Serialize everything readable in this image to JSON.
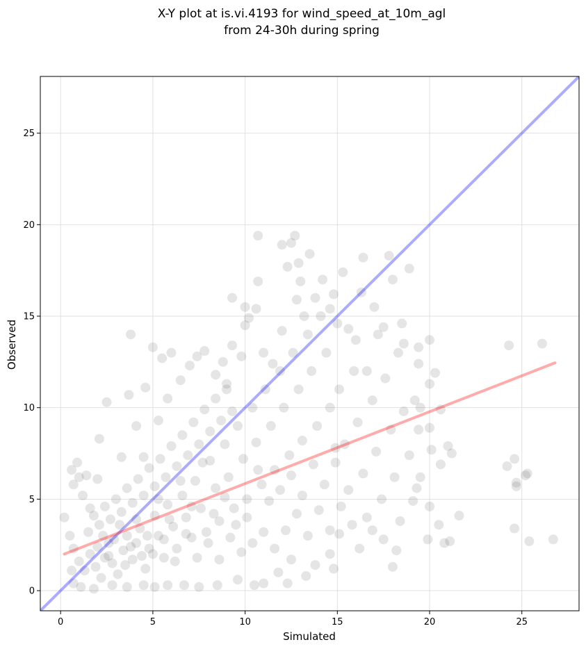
{
  "chart_data": {
    "type": "scatter",
    "title": "X-Y plot at is.vi.4193 for wind_speed_at_10m_agl",
    "subtitle": "from 24-30h during spring",
    "xlabel": "Simulated",
    "ylabel": "Observed",
    "xlim": [
      -1.1,
      28.1
    ],
    "ylim": [
      -1.1,
      28.1
    ],
    "xticks": [
      0,
      5,
      10,
      15,
      20,
      25
    ],
    "yticks": [
      0,
      5,
      10,
      15,
      20,
      25
    ],
    "grid": true,
    "point_color": "#333333",
    "points": [
      [
        0.2,
        4.0
      ],
      [
        0.5,
        3.0
      ],
      [
        0.6,
        6.6
      ],
      [
        0.7,
        5.8
      ],
      [
        0.9,
        7.0
      ],
      [
        1.0,
        6.2
      ],
      [
        1.2,
        5.2
      ],
      [
        1.4,
        6.3
      ],
      [
        1.6,
        4.5
      ],
      [
        2.0,
        6.1
      ],
      [
        2.1,
        8.3
      ],
      [
        2.5,
        10.3
      ],
      [
        3.3,
        7.3
      ],
      [
        3.7,
        10.7
      ],
      [
        3.8,
        14.0
      ],
      [
        4.1,
        9.0
      ],
      [
        4.5,
        7.3
      ],
      [
        4.6,
        11.1
      ],
      [
        5.0,
        13.3
      ],
      [
        5.3,
        9.3
      ],
      [
        5.5,
        12.7
      ],
      [
        5.8,
        10.5
      ],
      [
        6.0,
        13.0
      ],
      [
        6.5,
        11.5
      ],
      [
        7.0,
        12.3
      ],
      [
        7.4,
        12.8
      ],
      [
        7.8,
        13.1
      ],
      [
        8.4,
        11.8
      ],
      [
        8.8,
        12.5
      ],
      [
        9.0,
        11.3
      ],
      [
        9.3,
        13.4
      ],
      [
        9.3,
        16.0
      ],
      [
        9.8,
        12.8
      ],
      [
        10.0,
        14.5
      ],
      [
        10.0,
        15.5
      ],
      [
        10.2,
        14.9
      ],
      [
        10.6,
        15.4
      ],
      [
        10.7,
        16.9
      ],
      [
        10.7,
        19.4
      ],
      [
        11.0,
        13.0
      ],
      [
        11.5,
        12.4
      ],
      [
        12.0,
        14.2
      ],
      [
        12.0,
        18.9
      ],
      [
        12.3,
        17.7
      ],
      [
        12.5,
        19.0
      ],
      [
        12.7,
        19.4
      ],
      [
        12.8,
        15.9
      ],
      [
        12.9,
        17.9
      ],
      [
        13.0,
        16.9
      ],
      [
        13.2,
        15.0
      ],
      [
        13.5,
        18.4
      ],
      [
        13.8,
        16.0
      ],
      [
        14.2,
        17.0
      ],
      [
        14.6,
        15.4
      ],
      [
        14.8,
        16.2
      ],
      [
        15.0,
        14.6
      ],
      [
        15.3,
        17.4
      ],
      [
        15.6,
        14.3
      ],
      [
        16.0,
        13.7
      ],
      [
        16.3,
        16.3
      ],
      [
        16.4,
        18.2
      ],
      [
        16.6,
        12.0
      ],
      [
        17.0,
        15.5
      ],
      [
        17.2,
        14.0
      ],
      [
        17.5,
        14.4
      ],
      [
        17.8,
        18.3
      ],
      [
        18.0,
        17.0
      ],
      [
        18.3,
        13.0
      ],
      [
        18.5,
        14.6
      ],
      [
        18.6,
        13.5
      ],
      [
        18.9,
        17.6
      ],
      [
        19.4,
        13.3
      ],
      [
        19.4,
        12.4
      ],
      [
        20.0,
        13.7
      ],
      [
        20.3,
        11.9
      ],
      [
        20.0,
        11.3
      ],
      [
        19.2,
        10.4
      ],
      [
        19.5,
        10.0
      ],
      [
        20.6,
        9.9
      ],
      [
        20.0,
        8.9
      ],
      [
        20.1,
        7.7
      ],
      [
        21.0,
        7.9
      ],
      [
        20.6,
        6.9
      ],
      [
        21.2,
        7.5
      ],
      [
        19.5,
        6.2
      ],
      [
        19.3,
        5.6
      ],
      [
        20.0,
        4.6
      ],
      [
        20.5,
        3.6
      ],
      [
        19.9,
        2.8
      ],
      [
        20.8,
        2.6
      ],
      [
        21.1,
        2.7
      ],
      [
        21.6,
        4.1
      ],
      [
        24.3,
        13.4
      ],
      [
        26.1,
        13.5
      ],
      [
        24.2,
        6.8
      ],
      [
        24.6,
        7.2
      ],
      [
        24.7,
        5.9
      ],
      [
        24.7,
        5.7
      ],
      [
        25.2,
        6.3
      ],
      [
        25.3,
        6.4
      ],
      [
        24.6,
        3.4
      ],
      [
        25.4,
        2.7
      ],
      [
        26.7,
        2.8
      ],
      [
        18.0,
        1.3
      ],
      [
        18.2,
        2.2
      ],
      [
        17.5,
        2.8
      ],
      [
        16.9,
        3.3
      ],
      [
        16.2,
        2.3
      ],
      [
        15.8,
        3.6
      ],
      [
        15.1,
        3.1
      ],
      [
        14.6,
        2.0
      ],
      [
        14.8,
        1.2
      ],
      [
        13.8,
        1.4
      ],
      [
        13.3,
        0.8
      ],
      [
        12.5,
        1.7
      ],
      [
        11.8,
        1.0
      ],
      [
        12.3,
        0.4
      ],
      [
        11.0,
        0.4
      ],
      [
        10.5,
        0.3
      ],
      [
        9.6,
        0.6
      ],
      [
        8.5,
        0.3
      ],
      [
        7.5,
        0.2
      ],
      [
        6.7,
        0.3
      ],
      [
        5.8,
        0.3
      ],
      [
        5.1,
        0.2
      ],
      [
        4.5,
        0.3
      ],
      [
        3.6,
        0.2
      ],
      [
        2.8,
        0.3
      ],
      [
        1.8,
        0.1
      ],
      [
        1.1,
        0.2
      ],
      [
        0.7,
        0.4
      ],
      [
        0.6,
        1.1
      ],
      [
        0.7,
        2.3
      ],
      [
        1.0,
        1.6
      ],
      [
        1.3,
        1.1
      ],
      [
        1.6,
        2.0
      ],
      [
        1.9,
        1.3
      ],
      [
        2.2,
        0.7
      ],
      [
        2.4,
        1.8
      ],
      [
        2.6,
        2.6
      ],
      [
        2.8,
        1.5
      ],
      [
        3.1,
        0.9
      ],
      [
        3.4,
        2.2
      ],
      [
        3.6,
        3.0
      ],
      [
        3.9,
        1.7
      ],
      [
        4.1,
        2.6
      ],
      [
        4.3,
        3.4
      ],
      [
        4.6,
        1.2
      ],
      [
        4.8,
        2.3
      ],
      [
        5.1,
        4.1
      ],
      [
        5.3,
        3.0
      ],
      [
        5.6,
        1.8
      ],
      [
        5.8,
        4.7
      ],
      [
        6.1,
        3.5
      ],
      [
        6.3,
        2.3
      ],
      [
        6.6,
        5.2
      ],
      [
        6.8,
        4.0
      ],
      [
        7.1,
        2.9
      ],
      [
        7.3,
        6.0
      ],
      [
        7.6,
        4.5
      ],
      [
        7.9,
        3.2
      ],
      [
        8.1,
        7.1
      ],
      [
        8.4,
        5.6
      ],
      [
        8.6,
        3.8
      ],
      [
        8.9,
        8.0
      ],
      [
        9.1,
        6.2
      ],
      [
        9.4,
        4.5
      ],
      [
        9.6,
        9.0
      ],
      [
        9.9,
        7.2
      ],
      [
        10.1,
        5.0
      ],
      [
        10.4,
        10.0
      ],
      [
        10.6,
        8.1
      ],
      [
        10.9,
        5.8
      ],
      [
        11.1,
        11.0
      ],
      [
        11.4,
        9.0
      ],
      [
        11.6,
        6.6
      ],
      [
        11.9,
        12.0
      ],
      [
        12.1,
        10.0
      ],
      [
        12.4,
        7.4
      ],
      [
        12.6,
        13.0
      ],
      [
        12.9,
        11.0
      ],
      [
        13.1,
        8.2
      ],
      [
        13.4,
        14.0
      ],
      [
        13.6,
        12.0
      ],
      [
        13.9,
        9.0
      ],
      [
        14.1,
        15.0
      ],
      [
        14.4,
        13.0
      ],
      [
        14.6,
        10.0
      ],
      [
        14.9,
        7.0
      ],
      [
        15.1,
        11.0
      ],
      [
        15.4,
        8.0
      ],
      [
        15.6,
        5.5
      ],
      [
        15.9,
        12.0
      ],
      [
        16.1,
        9.2
      ],
      [
        16.4,
        6.4
      ],
      [
        16.6,
        4.0
      ],
      [
        16.9,
        10.4
      ],
      [
        17.1,
        7.6
      ],
      [
        17.4,
        5.0
      ],
      [
        17.6,
        11.6
      ],
      [
        17.9,
        8.8
      ],
      [
        18.1,
        6.2
      ],
      [
        18.4,
        3.8
      ],
      [
        18.6,
        9.8
      ],
      [
        18.9,
        7.4
      ],
      [
        19.1,
        4.9
      ],
      [
        19.4,
        8.8
      ],
      [
        1.5,
        3.2
      ],
      [
        1.8,
        4.1
      ],
      [
        2.1,
        3.6
      ],
      [
        2.4,
        4.6
      ],
      [
        2.7,
        3.9
      ],
      [
        3.0,
        5.0
      ],
      [
        3.3,
        4.3
      ],
      [
        3.6,
        5.6
      ],
      [
        3.9,
        4.8
      ],
      [
        4.2,
        6.1
      ],
      [
        4.5,
        5.2
      ],
      [
        4.8,
        6.7
      ],
      [
        5.1,
        5.7
      ],
      [
        5.4,
        7.2
      ],
      [
        5.7,
        6.2
      ],
      [
        6.0,
        7.9
      ],
      [
        6.3,
        6.8
      ],
      [
        6.6,
        8.5
      ],
      [
        6.9,
        7.4
      ],
      [
        7.2,
        9.2
      ],
      [
        7.5,
        8.0
      ],
      [
        7.8,
        9.9
      ],
      [
        8.1,
        8.7
      ],
      [
        8.4,
        10.5
      ],
      [
        8.7,
        9.3
      ],
      [
        9.0,
        11.0
      ],
      [
        9.3,
        9.8
      ],
      [
        2.0,
        2.4
      ],
      [
        2.3,
        3.0
      ],
      [
        2.6,
        1.9
      ],
      [
        2.9,
        2.8
      ],
      [
        3.2,
        3.6
      ],
      [
        3.5,
        1.4
      ],
      [
        3.8,
        2.4
      ],
      [
        4.1,
        3.9
      ],
      [
        4.4,
        1.9
      ],
      [
        4.7,
        3.0
      ],
      [
        5.0,
        2.0
      ],
      [
        5.3,
        5.0
      ],
      [
        5.6,
        2.8
      ],
      [
        5.9,
        3.9
      ],
      [
        6.2,
        1.6
      ],
      [
        6.5,
        6.0
      ],
      [
        6.8,
        3.1
      ],
      [
        7.1,
        4.6
      ],
      [
        7.4,
        1.8
      ],
      [
        7.7,
        7.0
      ],
      [
        8.0,
        2.6
      ],
      [
        8.3,
        4.2
      ],
      [
        8.6,
        1.7
      ],
      [
        8.9,
        5.1
      ],
      [
        9.2,
        2.9
      ],
      [
        9.5,
        3.6
      ],
      [
        9.8,
        2.1
      ],
      [
        10.1,
        4.0
      ],
      [
        10.4,
        2.6
      ],
      [
        10.7,
        6.6
      ],
      [
        11.0,
        3.2
      ],
      [
        11.3,
        4.9
      ],
      [
        11.6,
        2.3
      ],
      [
        11.9,
        5.5
      ],
      [
        12.2,
        3.3
      ],
      [
        12.5,
        6.3
      ],
      [
        12.8,
        4.2
      ],
      [
        13.1,
        5.2
      ],
      [
        13.4,
        3.0
      ],
      [
        13.7,
        6.9
      ],
      [
        14.0,
        4.4
      ],
      [
        14.3,
        5.8
      ],
      [
        14.6,
        3.3
      ],
      [
        14.9,
        7.8
      ],
      [
        15.2,
        4.6
      ]
    ],
    "lines": [
      {
        "name": "",
        "color": "#0000ff",
        "opacity": 0.33,
        "x": [
          -1.1,
          28.1
        ],
        "y": [
          -1.1,
          28.1
        ]
      },
      {
        "name": "",
        "color": "#ff0000",
        "opacity": 0.33,
        "x": [
          0.2,
          26.8
        ],
        "y": [
          2.0,
          12.45
        ]
      }
    ]
  }
}
